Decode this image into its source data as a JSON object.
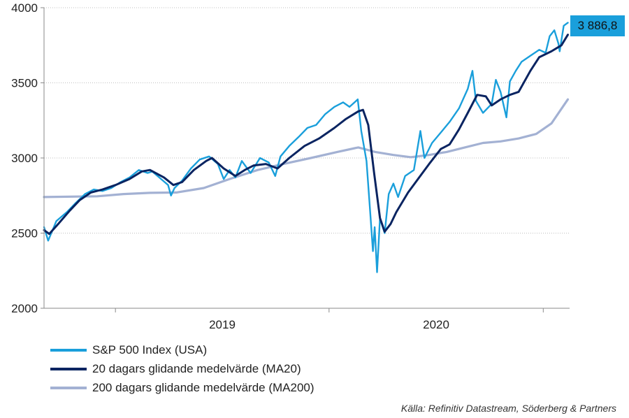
{
  "chart_data": {
    "type": "line",
    "ylim": [
      2000,
      4000
    ],
    "yticks": [
      2000,
      2500,
      3000,
      3500,
      4000
    ],
    "ytick_labels": [
      "2000",
      "2500",
      "3000",
      "3500",
      "4000"
    ],
    "xlim": [
      "2018-09-01",
      "2021-02-15"
    ],
    "x_category_labels": [
      "2019",
      "2020"
    ],
    "grid": "horizontal dotted",
    "legend_position": "bottom-left",
    "last_value_label": "3 886,8",
    "series": [
      {
        "name": "S&P 500 Index (USA)",
        "color": "#1a9fdb",
        "points": [
          [
            "2018-09-01",
            2540
          ],
          [
            "2018-09-08",
            2450
          ],
          [
            "2018-09-22",
            2580
          ],
          [
            "2018-10-10",
            2640
          ],
          [
            "2018-10-25",
            2700
          ],
          [
            "2018-11-10",
            2760
          ],
          [
            "2018-11-25",
            2790
          ],
          [
            "2018-12-10",
            2780
          ],
          [
            "2018-12-25",
            2800
          ],
          [
            "2019-01-10",
            2840
          ],
          [
            "2019-01-25",
            2870
          ],
          [
            "2019-02-10",
            2920
          ],
          [
            "2019-02-25",
            2900
          ],
          [
            "2019-03-05",
            2910
          ],
          [
            "2019-03-20",
            2860
          ],
          [
            "2019-04-01",
            2820
          ],
          [
            "2019-04-06",
            2750
          ],
          [
            "2019-04-12",
            2800
          ],
          [
            "2019-04-25",
            2850
          ],
          [
            "2019-05-10",
            2930
          ],
          [
            "2019-05-25",
            2990
          ],
          [
            "2019-06-10",
            3010
          ],
          [
            "2019-06-25",
            2960
          ],
          [
            "2019-07-05",
            2860
          ],
          [
            "2019-07-15",
            2920
          ],
          [
            "2019-07-25",
            2870
          ],
          [
            "2019-08-05",
            2980
          ],
          [
            "2019-08-20",
            2900
          ],
          [
            "2019-09-05",
            3000
          ],
          [
            "2019-09-20",
            2970
          ],
          [
            "2019-10-01",
            2880
          ],
          [
            "2019-10-10",
            3010
          ],
          [
            "2019-10-25",
            3080
          ],
          [
            "2019-11-10",
            3140
          ],
          [
            "2019-11-25",
            3200
          ],
          [
            "2019-12-10",
            3220
          ],
          [
            "2019-12-25",
            3290
          ],
          [
            "2020-01-10",
            3340
          ],
          [
            "2020-01-25",
            3370
          ],
          [
            "2020-02-05",
            3340
          ],
          [
            "2020-02-19",
            3390
          ],
          [
            "2020-02-25",
            3180
          ],
          [
            "2020-03-05",
            2980
          ],
          [
            "2020-03-12",
            2600
          ],
          [
            "2020-03-16",
            2380
          ],
          [
            "2020-03-19",
            2540
          ],
          [
            "2020-03-23",
            2240
          ],
          [
            "2020-03-28",
            2600
          ],
          [
            "2020-04-05",
            2500
          ],
          [
            "2020-04-12",
            2760
          ],
          [
            "2020-04-20",
            2830
          ],
          [
            "2020-04-28",
            2740
          ],
          [
            "2020-05-10",
            2880
          ],
          [
            "2020-05-25",
            2920
          ],
          [
            "2020-06-05",
            3180
          ],
          [
            "2020-06-12",
            3000
          ],
          [
            "2020-06-25",
            3100
          ],
          [
            "2020-07-10",
            3170
          ],
          [
            "2020-07-25",
            3240
          ],
          [
            "2020-08-10",
            3330
          ],
          [
            "2020-08-25",
            3460
          ],
          [
            "2020-09-02",
            3580
          ],
          [
            "2020-09-08",
            3380
          ],
          [
            "2020-09-20",
            3300
          ],
          [
            "2020-10-05",
            3360
          ],
          [
            "2020-10-12",
            3520
          ],
          [
            "2020-10-20",
            3440
          ],
          [
            "2020-10-30",
            3270
          ],
          [
            "2020-11-05",
            3510
          ],
          [
            "2020-11-15",
            3580
          ],
          [
            "2020-11-25",
            3640
          ],
          [
            "2020-12-10",
            3680
          ],
          [
            "2020-12-25",
            3720
          ],
          [
            "2021-01-05",
            3700
          ],
          [
            "2021-01-12",
            3810
          ],
          [
            "2021-01-20",
            3850
          ],
          [
            "2021-01-27",
            3760
          ],
          [
            "2021-01-29",
            3710
          ],
          [
            "2021-02-05",
            3880
          ],
          [
            "2021-02-12",
            3900
          ]
        ]
      },
      {
        "name": "20 dagars glidande medelvärde (MA20)",
        "color": "#0a2461",
        "points": [
          [
            "2018-09-01",
            2520
          ],
          [
            "2018-09-10",
            2495
          ],
          [
            "2018-09-25",
            2560
          ],
          [
            "2018-10-15",
            2650
          ],
          [
            "2018-11-01",
            2720
          ],
          [
            "2018-11-20",
            2770
          ],
          [
            "2018-12-10",
            2790
          ],
          [
            "2019-01-01",
            2820
          ],
          [
            "2019-01-25",
            2860
          ],
          [
            "2019-02-15",
            2910
          ],
          [
            "2019-03-01",
            2920
          ],
          [
            "2019-03-25",
            2870
          ],
          [
            "2019-04-10",
            2820
          ],
          [
            "2019-04-25",
            2840
          ],
          [
            "2019-05-15",
            2920
          ],
          [
            "2019-06-05",
            2980
          ],
          [
            "2019-06-15",
            3000
          ],
          [
            "2019-07-05",
            2930
          ],
          [
            "2019-07-25",
            2880
          ],
          [
            "2019-08-10",
            2920
          ],
          [
            "2019-08-25",
            2950
          ],
          [
            "2019-09-15",
            2960
          ],
          [
            "2019-10-05",
            2930
          ],
          [
            "2019-10-25",
            3000
          ],
          [
            "2019-11-20",
            3080
          ],
          [
            "2019-12-15",
            3130
          ],
          [
            "2020-01-10",
            3200
          ],
          [
            "2020-01-30",
            3260
          ],
          [
            "2020-02-20",
            3310
          ],
          [
            "2020-02-28",
            3320
          ],
          [
            "2020-03-08",
            3220
          ],
          [
            "2020-03-18",
            2900
          ],
          [
            "2020-03-28",
            2600
          ],
          [
            "2020-04-05",
            2510
          ],
          [
            "2020-04-15",
            2560
          ],
          [
            "2020-04-25",
            2640
          ],
          [
            "2020-05-15",
            2770
          ],
          [
            "2020-06-01",
            2860
          ],
          [
            "2020-06-20",
            2960
          ],
          [
            "2020-07-10",
            3060
          ],
          [
            "2020-07-25",
            3090
          ],
          [
            "2020-08-10",
            3190
          ],
          [
            "2020-08-25",
            3300
          ],
          [
            "2020-09-10",
            3420
          ],
          [
            "2020-09-25",
            3410
          ],
          [
            "2020-10-05",
            3350
          ],
          [
            "2020-10-20",
            3390
          ],
          [
            "2020-11-05",
            3420
          ],
          [
            "2020-11-20",
            3440
          ],
          [
            "2020-12-10",
            3580
          ],
          [
            "2020-12-25",
            3670
          ],
          [
            "2021-01-15",
            3710
          ],
          [
            "2021-02-01",
            3750
          ],
          [
            "2021-02-12",
            3820
          ]
        ]
      },
      {
        "name": "200 dagars glidande medelvärde (MA200)",
        "color": "#a3b1d3",
        "points": [
          [
            "2018-09-01",
            2740
          ],
          [
            "2018-12-01",
            2745
          ],
          [
            "2019-01-15",
            2760
          ],
          [
            "2019-03-01",
            2768
          ],
          [
            "2019-04-15",
            2770
          ],
          [
            "2019-06-01",
            2800
          ],
          [
            "2019-07-15",
            2860
          ],
          [
            "2019-09-01",
            2920
          ],
          [
            "2019-10-15",
            2960
          ],
          [
            "2019-12-01",
            3000
          ],
          [
            "2020-01-15",
            3040
          ],
          [
            "2020-02-20",
            3070
          ],
          [
            "2020-03-20",
            3040
          ],
          [
            "2020-04-20",
            3020
          ],
          [
            "2020-05-20",
            3005
          ],
          [
            "2020-06-20",
            3020
          ],
          [
            "2020-07-20",
            3040
          ],
          [
            "2020-08-20",
            3070
          ],
          [
            "2020-09-20",
            3100
          ],
          [
            "2020-10-20",
            3110
          ],
          [
            "2020-11-20",
            3130
          ],
          [
            "2020-12-20",
            3160
          ],
          [
            "2021-01-15",
            3230
          ],
          [
            "2021-02-12",
            3390
          ]
        ]
      }
    ]
  },
  "source_text": "Källa: Refinitiv Datastream, Söderberg & Partners",
  "colors": {
    "callout_bg": "#1a9fdb",
    "axis": "#8a8a8a",
    "grid": "#bfbfbf"
  }
}
